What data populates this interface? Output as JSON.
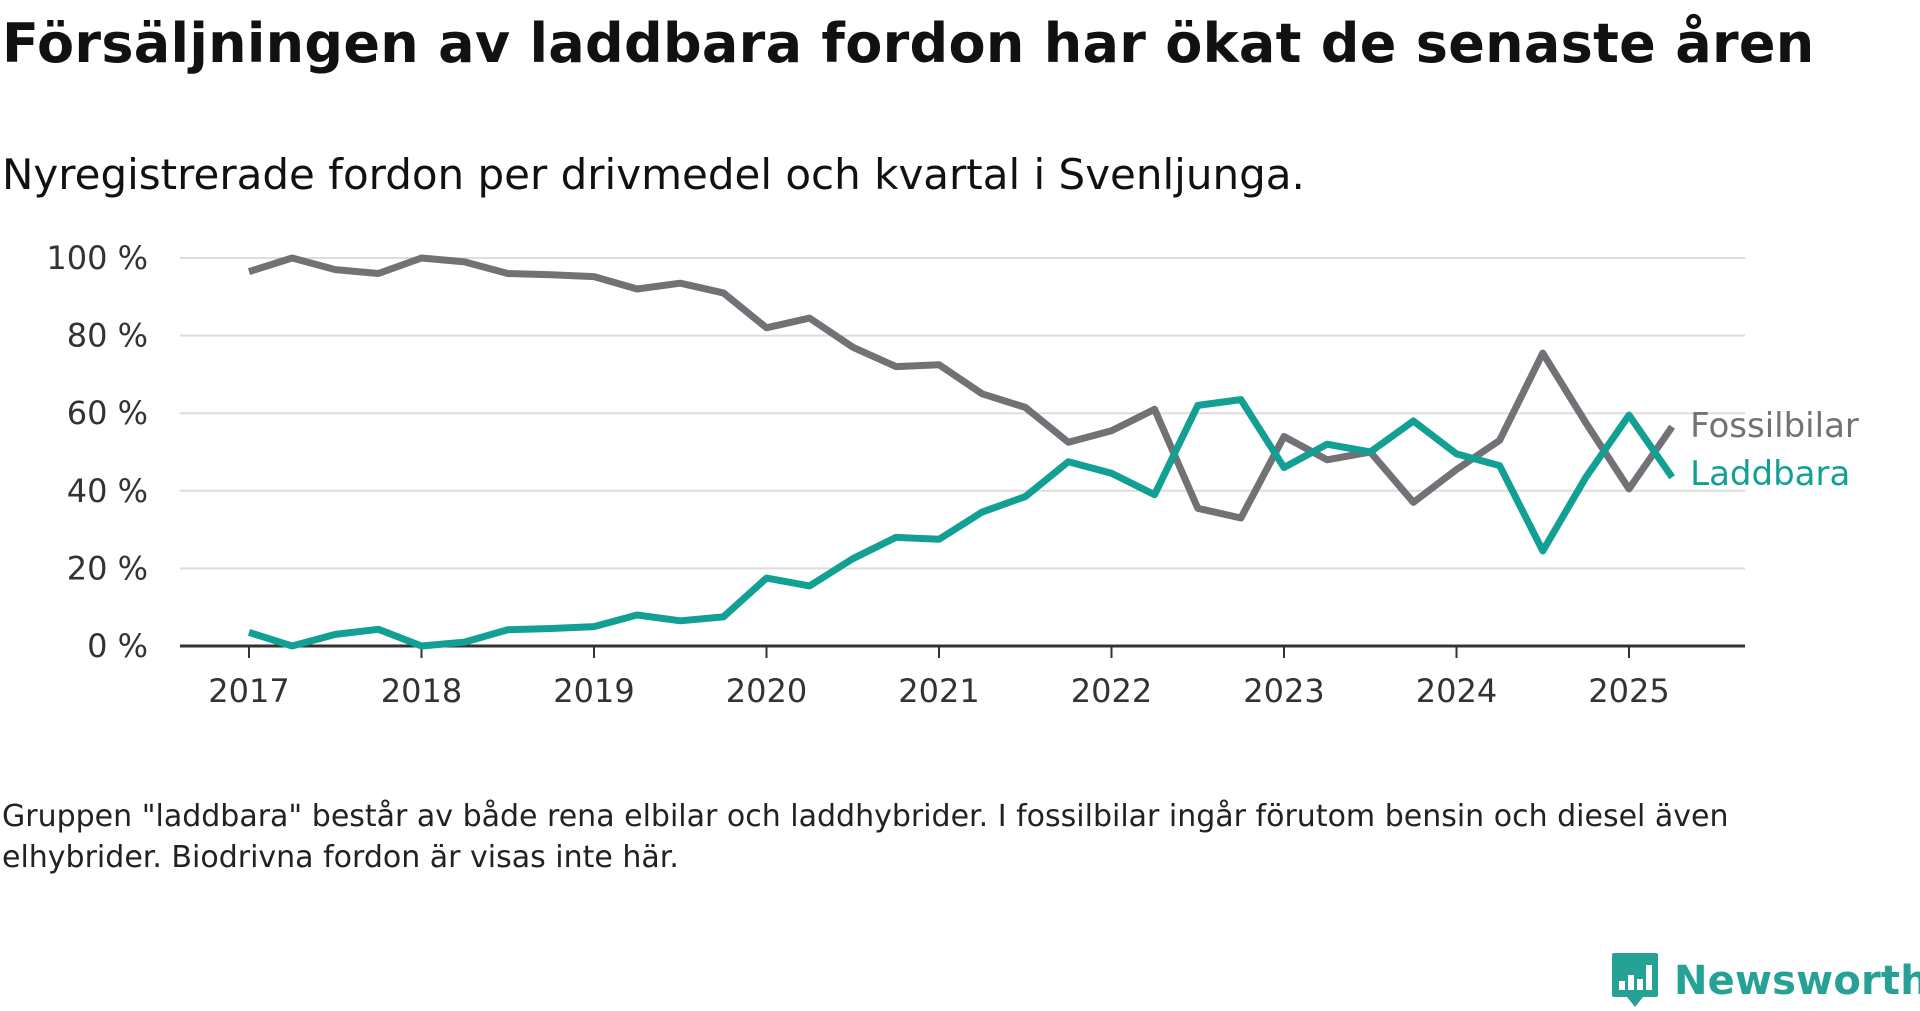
{
  "header": {
    "title": "Försäljningen av laddbara fordon har ökat de senaste åren",
    "subtitle": "Nyregistrerade fordon per drivmedel och kvartal i Svenljunga."
  },
  "footer": {
    "note": "Gruppen \"laddbara\" består av både rena elbilar och laddhybrider. I fossilbilar ingår förutom bensin och diesel även elhybrider. Biodrivna fordon är visas inte här.",
    "brand": "Newsworthy"
  },
  "colors": {
    "fossil": "#727176",
    "laddbara": "#12a095",
    "grid": "#dddddd",
    "axis": "#333333",
    "brand": "#26a195"
  },
  "chart_data": {
    "type": "line",
    "ylim": [
      0,
      100
    ],
    "y_ticks": [
      0,
      20,
      40,
      60,
      80,
      100
    ],
    "y_tick_labels": [
      "0 %",
      "20 %",
      "40 %",
      "60 %",
      "80 %",
      "100 %"
    ],
    "x_ticks": [
      "2017",
      "2018",
      "2019",
      "2020",
      "2021",
      "2022",
      "2023",
      "2024",
      "2025"
    ],
    "grid": true,
    "legend": "right, at line ends",
    "x": [
      "2017Q1",
      "2017Q2",
      "2017Q3",
      "2017Q4",
      "2018Q1",
      "2018Q2",
      "2018Q3",
      "2018Q4",
      "2019Q1",
      "2019Q2",
      "2019Q3",
      "2019Q4",
      "2020Q1",
      "2020Q2",
      "2020Q3",
      "2020Q4",
      "2021Q1",
      "2021Q2",
      "2021Q3",
      "2021Q4",
      "2022Q1",
      "2022Q2",
      "2022Q3",
      "2022Q4",
      "2023Q1",
      "2023Q2",
      "2023Q3",
      "2023Q4",
      "2024Q1",
      "2024Q2",
      "2024Q3",
      "2024Q4",
      "2025Q1",
      "2025Q2"
    ],
    "series": [
      {
        "name": "Fossilbilar",
        "color": "#727176",
        "values": [
          96.5,
          100,
          97,
          96,
          100,
          99,
          96,
          95.7,
          95.2,
          92,
          93.5,
          91,
          82,
          84.5,
          77,
          72,
          72.5,
          65,
          61.5,
          52.5,
          55.5,
          61,
          35.5,
          33,
          54,
          48,
          50,
          37,
          45.5,
          53,
          75.5,
          57.5,
          40.5,
          56.5
        ]
      },
      {
        "name": "Laddbara",
        "color": "#12a095",
        "values": [
          3.5,
          0,
          3,
          4.3,
          0,
          1,
          4.2,
          4.5,
          5,
          8,
          6.5,
          7.5,
          17.5,
          15.5,
          22.5,
          28,
          27.5,
          34.5,
          38.5,
          47.5,
          44.5,
          39,
          62,
          63.5,
          46,
          52,
          50,
          58,
          49.5,
          46.5,
          24.5,
          43.5,
          59.5,
          43.5
        ]
      }
    ]
  }
}
